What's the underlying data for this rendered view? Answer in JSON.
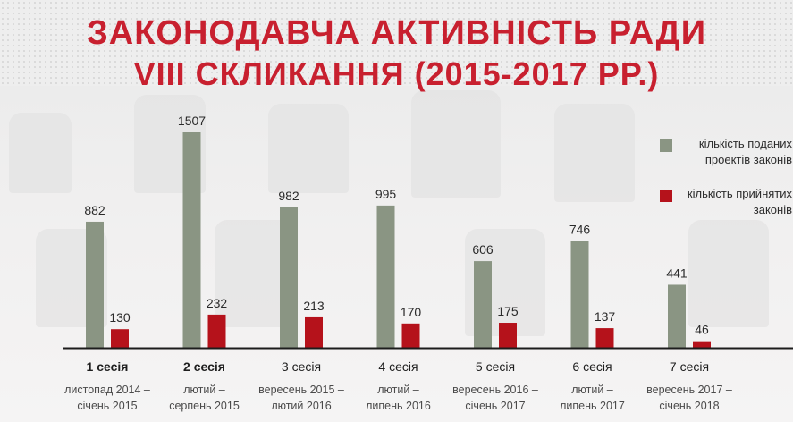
{
  "title": {
    "line1": "ЗАКОНОДАВЧА АКТИВНІСТЬ РАДИ",
    "line2": "VIII СКЛИКАННЯ (2015-2017 РР.)"
  },
  "legend": [
    {
      "label": "кількість поданих проектів законів",
      "color": "#8a9583"
    },
    {
      "label": "кількість прийнятих законів",
      "color": "#b5121b"
    }
  ],
  "sessions": [
    {
      "name": "1 сесія",
      "period": "листопад 2014 –\nсічень 2015",
      "bold": true
    },
    {
      "name": "2 сесія",
      "period": "лютий –\nсерпень 2015",
      "bold": true
    },
    {
      "name": "3 сесія",
      "period": "вересень 2015 –\nлютий 2016",
      "bold": false
    },
    {
      "name": "4 сесія",
      "period": "лютий –\nлипень 2016",
      "bold": false
    },
    {
      "name": "5 сесія",
      "period": "вересень 2016 –\nсічень 2017",
      "bold": false
    },
    {
      "name": "6 сесія",
      "period": "лютий –\nлипень 2017",
      "bold": false
    },
    {
      "name": "7 сесія",
      "period": "вересень 2017 –\nсічень 2018",
      "bold": false
    }
  ],
  "chart_data": {
    "type": "bar",
    "title": "ЗАКОНОДАВЧА АКТИВНІСТЬ РАДИ VIII СКЛИКАННЯ (2015-2017 РР.)",
    "categories": [
      "1 сесія",
      "2 сесія",
      "3 сесія",
      "4 сесія",
      "5 сесія",
      "6 сесія",
      "7 сесія"
    ],
    "series": [
      {
        "name": "кількість поданих проектів законів",
        "color": "#8a9583",
        "values": [
          882,
          1507,
          982,
          995,
          606,
          746,
          441
        ]
      },
      {
        "name": "кількість прийнятих законів",
        "color": "#b5121b",
        "values": [
          130,
          232,
          213,
          170,
          175,
          137,
          46
        ]
      }
    ],
    "xlabel": "",
    "ylabel": "",
    "ylim": [
      0,
      1507
    ],
    "grid": false,
    "legend_position": "right"
  }
}
